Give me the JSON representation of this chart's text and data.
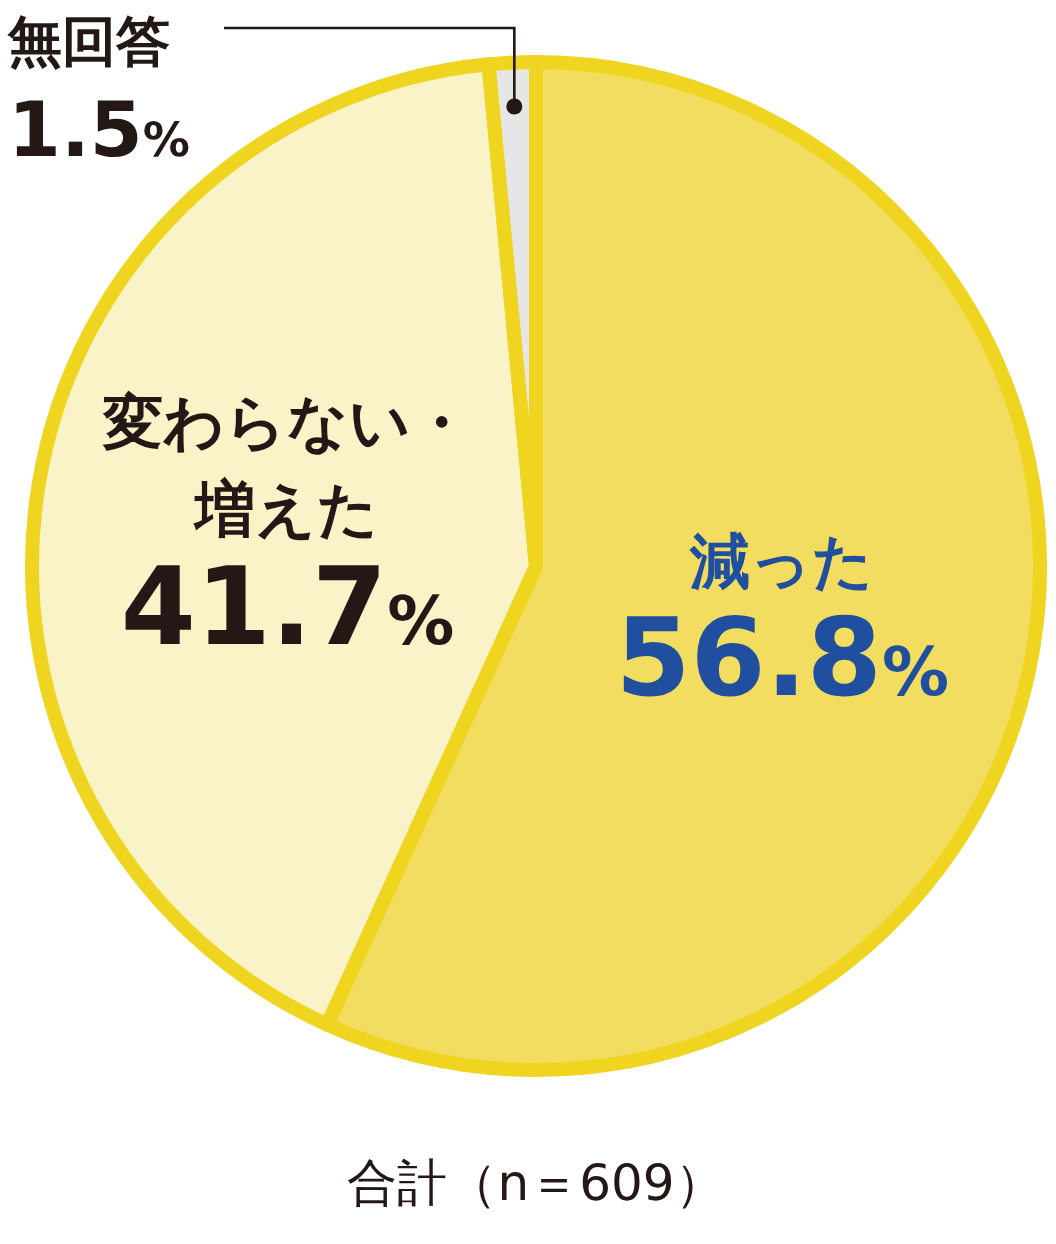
{
  "chart_data": {
    "type": "pie",
    "categories": [
      "減った",
      "変わらない・増えた",
      "無回答"
    ],
    "values": [
      56.8,
      41.7,
      1.5
    ],
    "value_labels": [
      "56.8%",
      "41.7%",
      "1.5%"
    ],
    "colors": [
      "#f3dd60",
      "#faf3c8",
      "#e6e6e6"
    ],
    "annotations": [
      "合計（n＝609）"
    ]
  }
}
